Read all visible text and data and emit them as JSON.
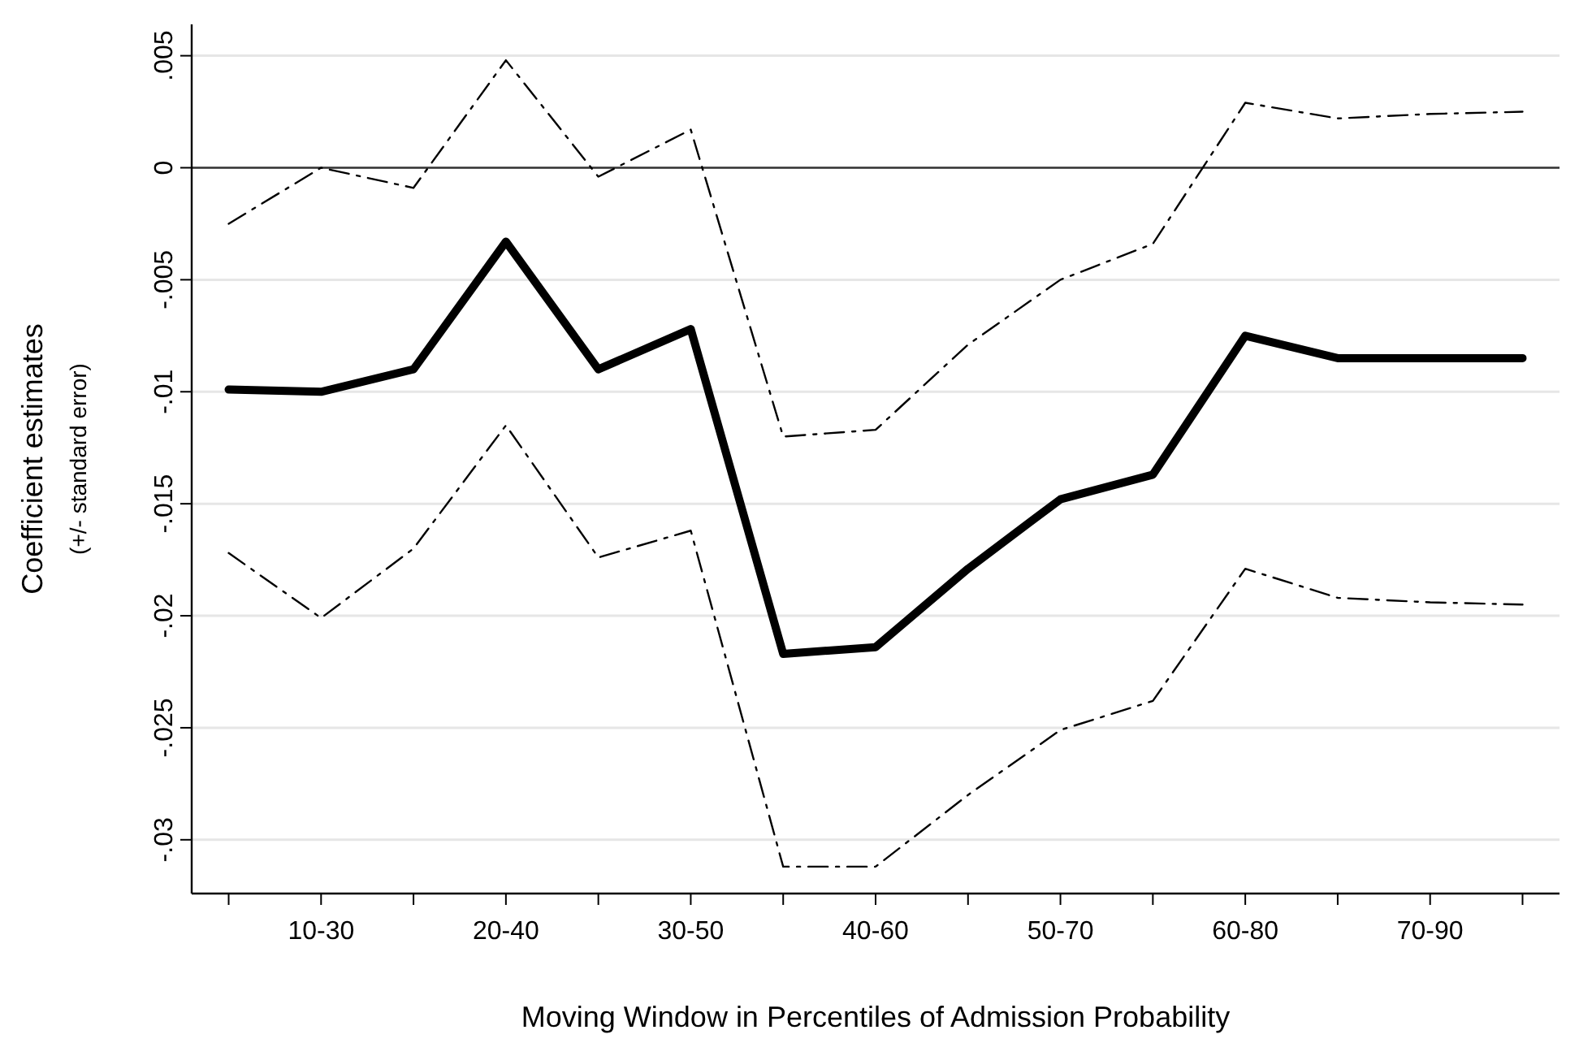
{
  "chart_data": {
    "type": "line",
    "xlabel": "Moving Window in Percentiles of Admission Probability",
    "ylabel": "Coefficient estimates",
    "subtitle": "(+/- standard error)",
    "categories": [
      null,
      "10-30",
      null,
      "20-40",
      null,
      "30-50",
      null,
      "40-60",
      null,
      "50-70",
      null,
      "60-80",
      null,
      "70-90",
      null
    ],
    "series": [
      {
        "color": "#000000",
        "line_style": "solid",
        "values": [
          -0.0099,
          -0.01,
          -0.009,
          -0.0033,
          -0.009,
          -0.0072,
          -0.0217,
          -0.0214,
          -0.0179,
          -0.0148,
          -0.0137,
          -0.0075,
          -0.0085,
          -0.0085,
          -0.0085
        ]
      },
      {
        "color": "#000000",
        "line_style": "dashed",
        "values": [
          -0.0025,
          0.0,
          -0.0009,
          0.0048,
          -0.0004,
          0.0017,
          -0.012,
          -0.0117,
          -0.0079,
          -0.005,
          -0.0034,
          0.0029,
          0.0022,
          0.0024,
          0.0025
        ]
      },
      {
        "color": "#000000",
        "line_style": "dashed",
        "values": [
          -0.0172,
          -0.0201,
          -0.017,
          -0.0115,
          -0.0174,
          -0.0162,
          -0.0312,
          -0.0312,
          -0.028,
          -0.0251,
          -0.0238,
          -0.0179,
          -0.0192,
          -0.0194,
          -0.0195
        ]
      }
    ],
    "ylim": [
      -0.0324,
      0.0064
    ],
    "yticks": [
      {
        "value": 0.005,
        "label": ".005"
      },
      0,
      {
        "value": -0.005,
        "label": "-.005"
      },
      {
        "value": -0.01,
        "label": "-.01"
      },
      {
        "value": -0.015,
        "label": "-.015"
      },
      {
        "value": -0.02,
        "label": "-.02"
      },
      {
        "value": -0.025,
        "label": "-.025"
      },
      {
        "value": -0.03,
        "label": "-.03"
      }
    ],
    "ref_lines": [
      {
        "axis": "y",
        "value": 0,
        "color": "#333333"
      }
    ],
    "grid": "y",
    "marker": "none"
  }
}
